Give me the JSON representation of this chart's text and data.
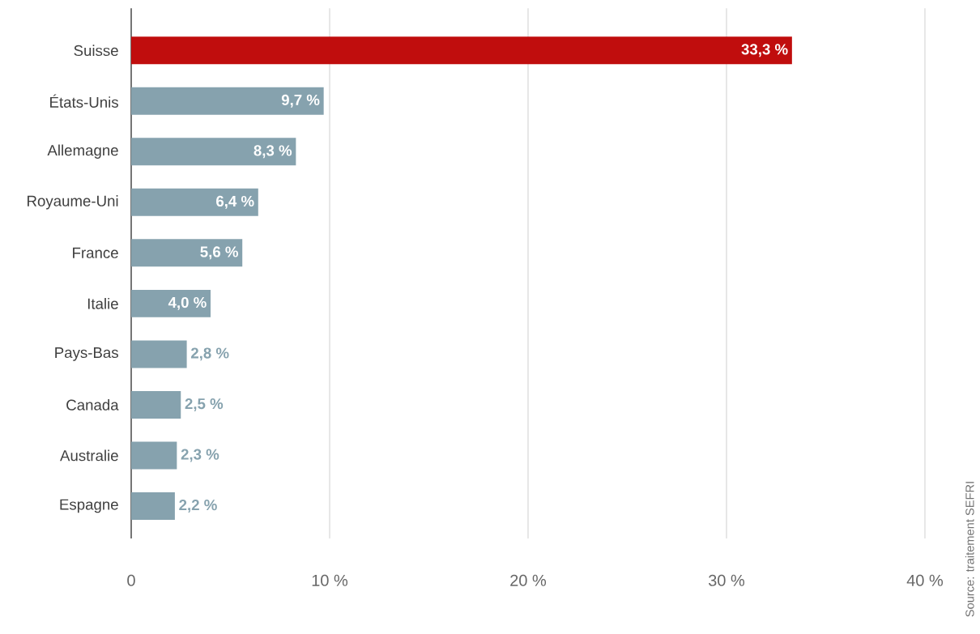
{
  "chart_data": {
    "type": "bar",
    "orientation": "horizontal",
    "categories": [
      "Suisse",
      "États-Unis",
      "Allemagne",
      "Royaume-Uni",
      "France",
      "Italie",
      "Pays-Bas",
      "Canada",
      "Australie",
      "Espagne"
    ],
    "values": [
      33.3,
      9.7,
      8.3,
      6.4,
      5.6,
      4.0,
      2.8,
      2.5,
      2.3,
      2.2
    ],
    "value_labels": [
      "33,3 %",
      "9,7 %",
      "8,3 %",
      "6,4 %",
      "5,6 %",
      "4,0 %",
      "2,8 %",
      "2,5 %",
      "2,3 %",
      "2,2 %"
    ],
    "colors": [
      "#c00d0d",
      "#86a2ae",
      "#86a2ae",
      "#86a2ae",
      "#86a2ae",
      "#86a2ae",
      "#86a2ae",
      "#86a2ae",
      "#86a2ae",
      "#86a2ae"
    ],
    "xlim": [
      0,
      40
    ],
    "xticks": [
      0,
      {
        "value": 10,
        "label": "10 %"
      },
      {
        "value": 20,
        "label": "20 %"
      },
      {
        "value": 30,
        "label": "30 %"
      },
      {
        "value": 40,
        "label": "40 %"
      }
    ],
    "grid": "x",
    "annotations": [
      "Source: traitement SEFRI"
    ]
  }
}
